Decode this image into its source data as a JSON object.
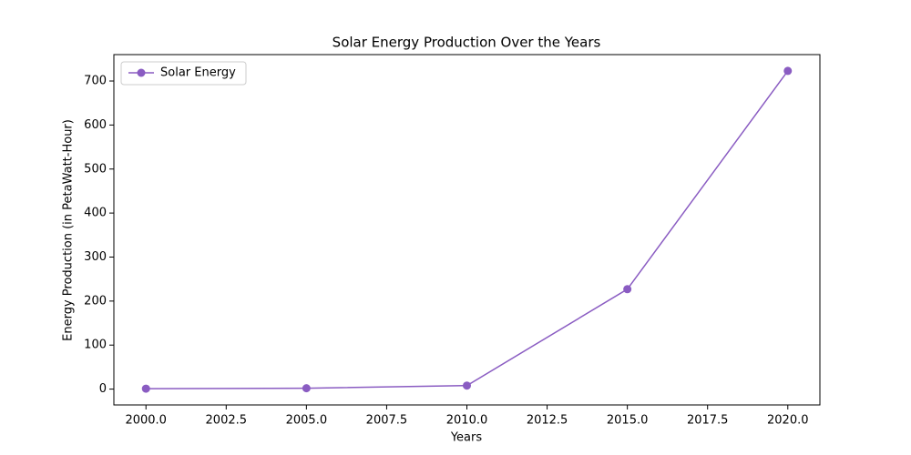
{
  "chart_data": {
    "type": "line",
    "title": "Solar Energy Production Over the Years",
    "xlabel": "Years",
    "ylabel": "Energy Production (in PetaWatt-Hour)",
    "x": [
      2000,
      2005,
      2010,
      2015,
      2020
    ],
    "series": [
      {
        "name": "Solar Energy",
        "color": "#8a5cc2",
        "values": [
          1,
          2,
          8,
          227,
          723
        ]
      }
    ],
    "xlim": [
      1999,
      2021
    ],
    "ylim": [
      -36,
      760
    ],
    "xticks": [
      {
        "value": 2000,
        "label": "2000.0"
      },
      {
        "value": 2002.5,
        "label": "2002.5"
      },
      {
        "value": 2005,
        "label": "2005.0"
      },
      {
        "value": 2007.5,
        "label": "2007.5"
      },
      {
        "value": 2010,
        "label": "2010.0"
      },
      {
        "value": 2012.5,
        "label": "2012.5"
      },
      {
        "value": 2015,
        "label": "2015.0"
      },
      {
        "value": 2017.5,
        "label": "2017.5"
      },
      {
        "value": 2020,
        "label": "2020.0"
      }
    ],
    "yticks": [
      0,
      100,
      200,
      300,
      400,
      500,
      600,
      700
    ],
    "grid": false,
    "legend": "upper-left"
  }
}
